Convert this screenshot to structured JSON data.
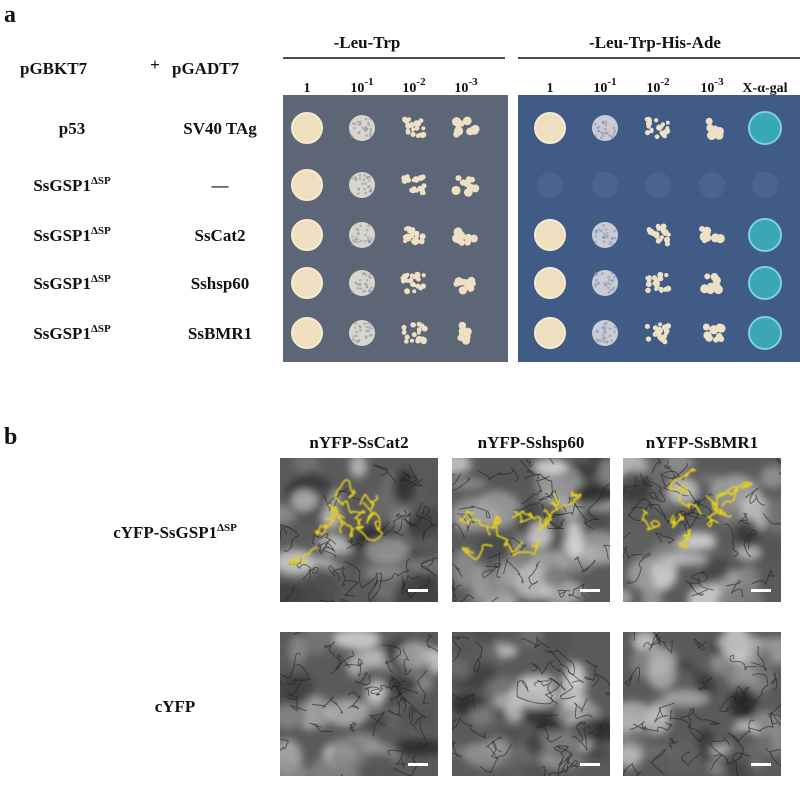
{
  "panel_a": {
    "label": "a",
    "bait_header": "pGBKT7",
    "plus": "+",
    "prey_header": "pGADT7",
    "media": [
      {
        "name": "-Leu-Trp",
        "dilutions": [
          {
            "base": "1"
          },
          {
            "base": "10",
            "sup": "-1"
          },
          {
            "base": "10",
            "sup": "-2"
          },
          {
            "base": "10",
            "sup": "-3"
          }
        ]
      },
      {
        "name": "-Leu-Trp-His-Ade",
        "dilutions": [
          {
            "base": "1"
          },
          {
            "base": "10",
            "sup": "-1"
          },
          {
            "base": "10",
            "sup": "-2"
          },
          {
            "base": "10",
            "sup": "-3"
          },
          {
            "base": "X-α-gal"
          }
        ]
      }
    ],
    "rows": [
      {
        "bait": {
          "base": "p53"
        },
        "prey": "SV40 TAg"
      },
      {
        "bait": {
          "base": "SsGSP1",
          "sup": "ΔSP"
        },
        "prey": "—"
      },
      {
        "bait": {
          "base": "SsGSP1",
          "sup": "ΔSP"
        },
        "prey": "SsCat2"
      },
      {
        "bait": {
          "base": "SsGSP1",
          "sup": "ΔSP"
        },
        "prey": "Sshsp60"
      },
      {
        "bait": {
          "base": "SsGSP1",
          "sup": "ΔSP"
        },
        "prey": "SsBMR1"
      }
    ]
  },
  "panel_b": {
    "label": "b",
    "columns": [
      "nYFP-SsCat2",
      "nYFP-Sshsp60",
      "nYFP-SsBMR1"
    ],
    "rows": [
      {
        "base": "cYFP-SsGSP1",
        "sup": "ΔSP"
      },
      {
        "base": "cYFP"
      }
    ]
  }
}
